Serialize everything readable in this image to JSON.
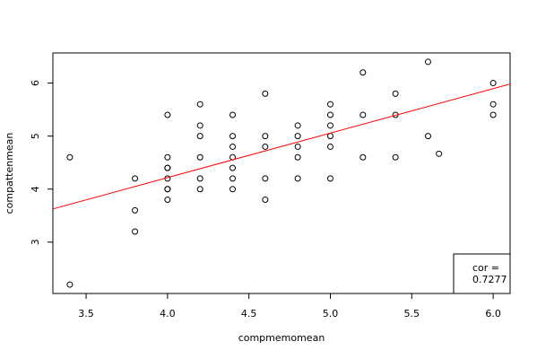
{
  "chart_data": {
    "type": "scatter",
    "xlabel": "compmemomean",
    "ylabel": "compattenmean",
    "xlim": [
      3.296,
      6.104
    ],
    "ylim": [
      2.032,
      6.568
    ],
    "xticks": [
      {
        "value": 3.5,
        "label": "3.5"
      },
      {
        "value": 4.0,
        "label": "4.0"
      },
      {
        "value": 4.5,
        "label": "4.5"
      },
      {
        "value": 5.0,
        "label": "5.0"
      },
      {
        "value": 5.5,
        "label": "5.5"
      },
      {
        "value": 6.0,
        "label": "6.0"
      }
    ],
    "yticks": [
      3,
      4,
      5,
      6
    ],
    "series": [
      {
        "color": "#000000",
        "x": [
          3.4,
          3.4,
          3.8,
          3.8,
          3.8,
          4.0,
          4.0,
          4.0,
          4.0,
          4.0,
          4.0,
          4.0,
          4.0,
          4.2,
          4.2,
          4.2,
          4.2,
          4.2,
          4.2,
          4.4,
          4.4,
          4.4,
          4.4,
          4.4,
          4.4,
          4.4,
          4.6,
          4.6,
          4.6,
          4.6,
          4.6,
          4.8,
          4.8,
          4.8,
          4.8,
          4.8,
          5.0,
          5.0,
          5.0,
          5.0,
          5.0,
          5.0,
          5.2,
          5.2,
          5.2,
          5.4,
          5.4,
          5.4,
          5.6,
          5.6,
          5.667,
          6.0,
          6.0,
          6.0
        ],
        "y": [
          4.6,
          2.2,
          4.2,
          3.6,
          3.2,
          5.4,
          4.6,
          4.4,
          4.4,
          4.2,
          4.0,
          4.0,
          3.8,
          5.6,
          5.2,
          5.0,
          4.6,
          4.2,
          4.0,
          5.4,
          5.0,
          4.8,
          4.6,
          4.4,
          4.2,
          4.0,
          5.8,
          5.0,
          4.8,
          4.2,
          3.8,
          5.2,
          5.0,
          4.8,
          4.6,
          4.2,
          5.6,
          5.4,
          5.2,
          5.0,
          4.8,
          4.2,
          6.2,
          5.4,
          4.6,
          5.8,
          5.4,
          4.6,
          6.4,
          5.0,
          4.667,
          6.0,
          5.6,
          5.4
        ]
      }
    ],
    "regression": {
      "intercept": 0.861,
      "slope": 0.839,
      "color": "#ff0000"
    },
    "legend": {
      "position": "lower right",
      "lines": [
        "cor =",
        "0.7277"
      ]
    }
  }
}
